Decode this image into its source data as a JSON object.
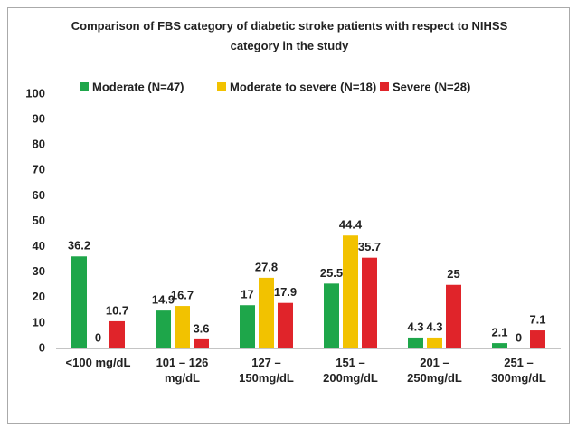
{
  "chart_data": {
    "type": "bar",
    "title": "Comparison of FBS category of diabetic stroke patients with respect to NIHSS category in the study",
    "categories": [
      "<100 mg/dL",
      "101 – 126 mg/dL",
      "127 – 150mg/dL",
      "151 – 200mg/dL",
      "201 – 250mg/dL",
      "251 – 300mg/dL"
    ],
    "series": [
      {
        "name": "Moderate (N=47)",
        "color": "#1ea64a",
        "values": [
          36.2,
          14.9,
          17,
          25.5,
          4.3,
          2.1
        ]
      },
      {
        "name": "Moderate to severe (N=18)",
        "color": "#f2c200",
        "values": [
          0,
          16.7,
          27.8,
          44.4,
          4.3,
          0
        ]
      },
      {
        "name": "Severe (N=28)",
        "color": "#e0242a",
        "values": [
          10.7,
          3.6,
          17.9,
          35.7,
          25,
          7.1
        ]
      }
    ],
    "ylim": [
      0,
      100
    ],
    "yticks": [
      0,
      10,
      20,
      30,
      40,
      50,
      60,
      70,
      80,
      90,
      100
    ],
    "grid": false,
    "legend": "top"
  }
}
